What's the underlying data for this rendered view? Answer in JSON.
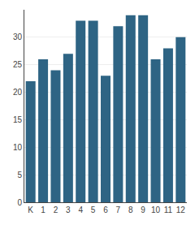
{
  "chart_data": {
    "type": "bar",
    "categories": [
      "K",
      "1",
      "2",
      "3",
      "4",
      "5",
      "6",
      "7",
      "8",
      "9",
      "10",
      "11",
      "12"
    ],
    "values": [
      22,
      26,
      24,
      27,
      33,
      33,
      23,
      32,
      34,
      34,
      26,
      28,
      30
    ],
    "color": "#2e6484",
    "ylim": [
      0,
      35
    ],
    "yticks": [
      0,
      5,
      10,
      15,
      20,
      25,
      30
    ],
    "grid": true
  }
}
